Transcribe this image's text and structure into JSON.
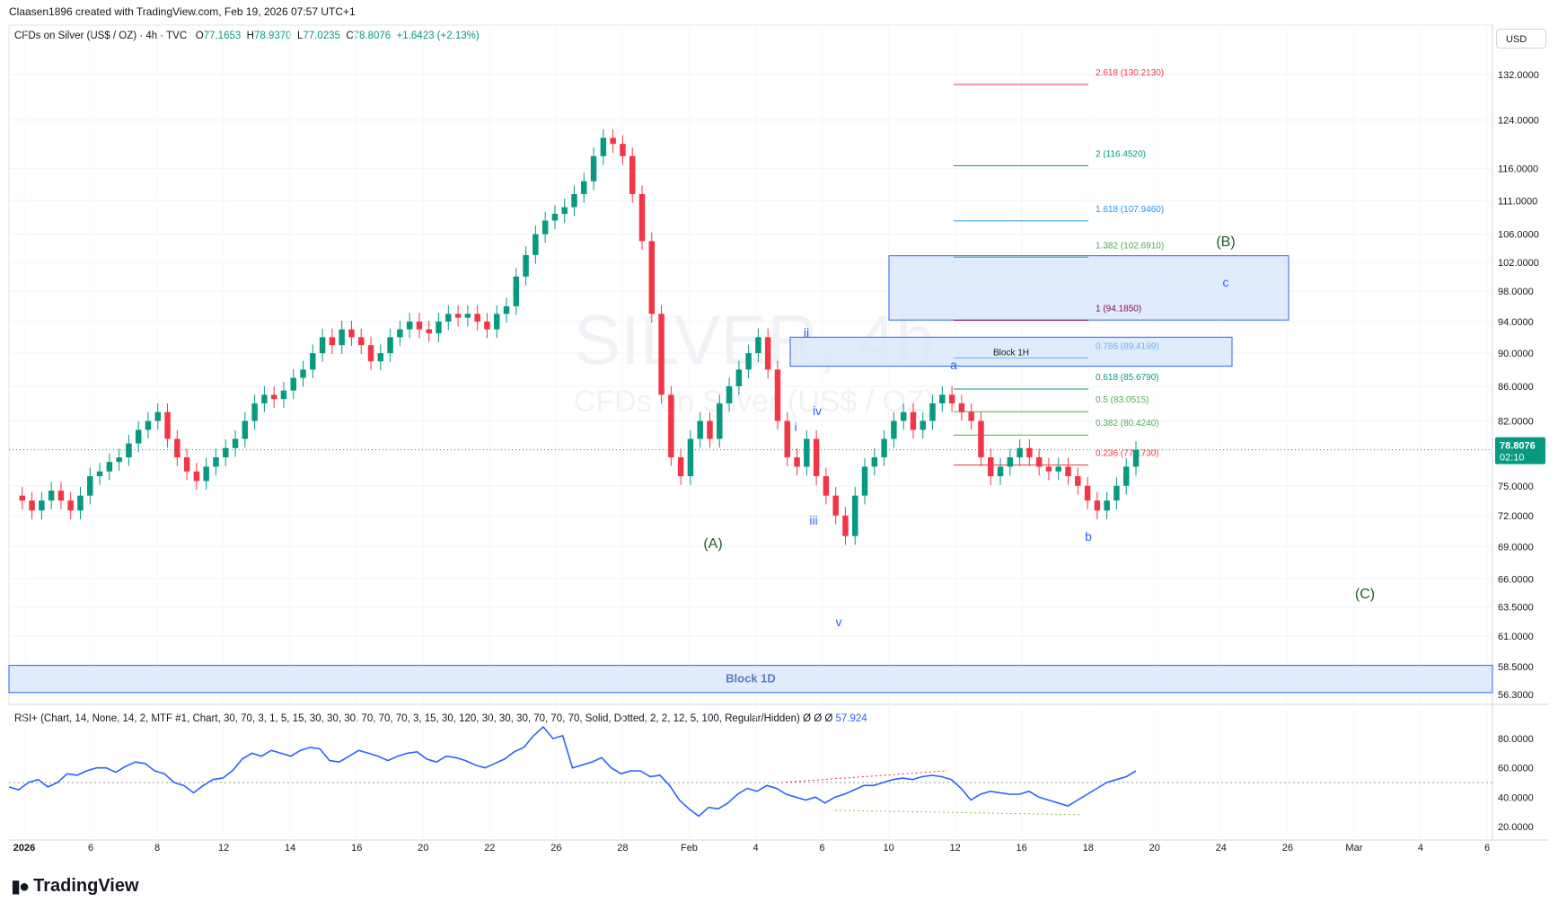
{
  "header": {
    "credit": "Claasen1896 created with TradingView.com, Feb 19, 2026 07:57 UTC+1"
  },
  "symbol": {
    "name": "CFDs on Silver (US$ / OZ) · 4h · TVC",
    "o_label": "O",
    "o": "77.1653",
    "h_label": "H",
    "h": "78.9370",
    "l_label": "L",
    "l": "77.0235",
    "c_label": "C",
    "c": "78.8076",
    "change": "+1.6423 (+2.13%)"
  },
  "currency": "USD",
  "watermark": {
    "line1": "SILVER, 4h",
    "line2": "CFDs on Silver (US$ / OZ)"
  },
  "last_price": {
    "value": "78.8076",
    "countdown": "02:10"
  },
  "rsi_header": {
    "text": "RSI+ (Chart, 14, None, 14, 2, MTF #1, Chart, 30, 70, 3, 1, 5, 15, 30, 30, 30, 70, 70, 70, 3, 15, 30, 120, 30, 30, 30, 70, 70, 70, Solid, Dotted, 2, 2, 12, 5, 100, Regular/Hidden)  Ø  Ø  Ø",
    "value": "57.924"
  },
  "branding": "TradingView",
  "chart_data": {
    "type": "candlestick",
    "symbol": "SILVER",
    "interval": "4h",
    "price_axis": {
      "scale": "log",
      "ticks": [
        "132.0000",
        "124.0000",
        "116.0000",
        "111.0000",
        "106.0000",
        "102.0000",
        "98.0000",
        "94.0000",
        "90.0000",
        "86.0000",
        "82.0000",
        "75.0000",
        "72.0000",
        "69.0000",
        "66.0000",
        "63.5000",
        "61.0000",
        "58.5000",
        "56.3000"
      ]
    },
    "time_axis": {
      "ticks": [
        {
          "label": "2026",
          "bold": true
        },
        {
          "label": "6"
        },
        {
          "label": "8"
        },
        {
          "label": "12"
        },
        {
          "label": "14"
        },
        {
          "label": "16"
        },
        {
          "label": "20"
        },
        {
          "label": "22"
        },
        {
          "label": "26"
        },
        {
          "label": "28"
        },
        {
          "label": "Feb",
          "bold": false
        },
        {
          "label": "4"
        },
        {
          "label": "6"
        },
        {
          "label": "10"
        },
        {
          "label": "12"
        },
        {
          "label": "16"
        },
        {
          "label": "18"
        },
        {
          "label": "20"
        },
        {
          "label": "24"
        },
        {
          "label": "26"
        },
        {
          "label": "Mar"
        },
        {
          "label": "4"
        },
        {
          "label": "6"
        }
      ]
    },
    "price_path": [
      74,
      73.5,
      72.5,
      73.5,
      74.5,
      73.5,
      72.5,
      74,
      76,
      76.5,
      77.5,
      78,
      79.5,
      81,
      82,
      83,
      80,
      78,
      76.5,
      75.5,
      77,
      78,
      79,
      80,
      82,
      84,
      85,
      84.5,
      85.5,
      87,
      88,
      90,
      92,
      91,
      93,
      92,
      91,
      89,
      90,
      92,
      93,
      94,
      93,
      92.5,
      94,
      95,
      94.5,
      95,
      94,
      93,
      95,
      96,
      100,
      103,
      106,
      108,
      109,
      110,
      112,
      114,
      118,
      121,
      120,
      118,
      112,
      105,
      95,
      85,
      78,
      76,
      80,
      82,
      80,
      84,
      86,
      88,
      90,
      92,
      88,
      82,
      78,
      77,
      80,
      76,
      74,
      72,
      70,
      74,
      77,
      78,
      80,
      82,
      83,
      81,
      82,
      84,
      85,
      84,
      83,
      82,
      78,
      76,
      77,
      78,
      79,
      78,
      77,
      76.5,
      77,
      76,
      75,
      73.5,
      72.5,
      73.5,
      75,
      77,
      78.8
    ],
    "rsi": {
      "ticks": [
        "80.0000",
        "60.0000",
        "40.0000",
        "20.0000"
      ],
      "midline": 50,
      "values": [
        47,
        45,
        50,
        52,
        47,
        50,
        56,
        55,
        58,
        60,
        60,
        57,
        61,
        64,
        63,
        58,
        56,
        50,
        48,
        43,
        48,
        52,
        53,
        58,
        66,
        70,
        68,
        72,
        70,
        68,
        72,
        74,
        73,
        65,
        64,
        68,
        72,
        70,
        68,
        65,
        68,
        70,
        71,
        66,
        64,
        68,
        67,
        65,
        62,
        60,
        63,
        66,
        71,
        74,
        82,
        88,
        80,
        82,
        60,
        62,
        64,
        67,
        60,
        56,
        58,
        58,
        54,
        55,
        48,
        38,
        32,
        27,
        33,
        32,
        36,
        42,
        46,
        44,
        48,
        46,
        42,
        40,
        38,
        40,
        36,
        40,
        42,
        45,
        48,
        48,
        50,
        52,
        53,
        52,
        54,
        55,
        54,
        52,
        46,
        38,
        42,
        44,
        43,
        42,
        42,
        44,
        40,
        38,
        36,
        34,
        38,
        42,
        46,
        50,
        52,
        54,
        57.9
      ],
      "divergence_labels": []
    },
    "annotations": {
      "waves_major": [
        {
          "label": "(A)"
        },
        {
          "label": "(B)"
        },
        {
          "label": "(C)"
        }
      ],
      "waves_minor": [
        {
          "label": "i"
        },
        {
          "label": "ii"
        },
        {
          "label": "iii"
        },
        {
          "label": "iv"
        },
        {
          "label": "v"
        },
        {
          "label": "a"
        },
        {
          "label": "b"
        },
        {
          "label": "c"
        }
      ],
      "fib_levels": [
        {
          "label": "2.618 (130.2130)",
          "price": 130.213,
          "color": "#f23645"
        },
        {
          "label": "2 (116.4520)",
          "price": 116.452,
          "color": "#089981"
        },
        {
          "label": "1.618 (107.9460)",
          "price": 107.946,
          "color": "#2196f3"
        },
        {
          "label": "1.382 (102.6910)",
          "price": 102.691,
          "color": "#4caf50"
        },
        {
          "label": "1 (94.1850)",
          "price": 94.185,
          "color": "#880e4f"
        },
        {
          "label": "0.786 (89.4199)",
          "price": 89.4199,
          "color": "#64b5f6"
        },
        {
          "label": "0.618 (85.6790)",
          "price": 85.679,
          "color": "#089981"
        },
        {
          "label": "0.5 (83.0515)",
          "price": 83.0515,
          "color": "#4caf50"
        },
        {
          "label": "0.382 (80.4240)",
          "price": 80.424,
          "color": "#4caf50"
        },
        {
          "label": "0.236 (77.1730)",
          "price": 77.173,
          "color": "#f23645"
        }
      ],
      "zones": [
        {
          "label": "Block 1H",
          "top": 92.0,
          "bottom": 88.4
        },
        {
          "label": "",
          "top": 102.9,
          "bottom": 94.2
        },
        {
          "label": "Block 1D",
          "top": 58.6,
          "bottom": 56.45
        }
      ]
    },
    "colors": {
      "up": "#089981",
      "down": "#f23645",
      "rsi": "#2962ff",
      "zone_fill": "#dbe8fb",
      "zone_stroke": "#2962ff",
      "wave_major": "#1b5e20",
      "wave_minor": "#2962ff"
    }
  }
}
